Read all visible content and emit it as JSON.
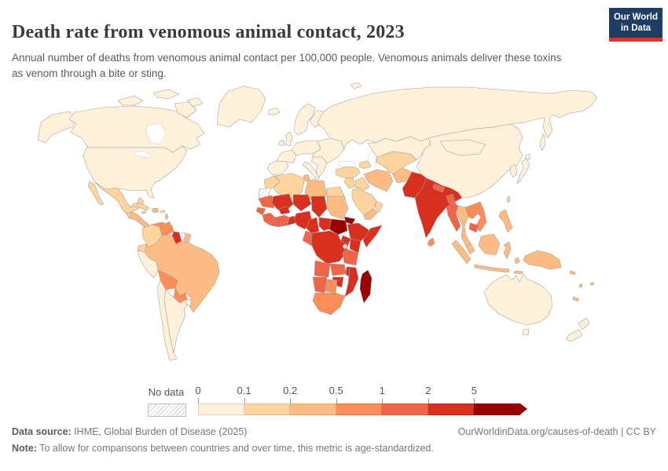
{
  "header": {
    "title": "Death rate from venomous animal contact, 2023",
    "subtitle": "Annual number of deaths from venomous animal contact per 100,000 people. Venomous animals deliver these toxins as venom through a bite or sting.",
    "logo": {
      "line1": "Our World",
      "line2": "in Data"
    }
  },
  "legend": {
    "no_data_label": "No data",
    "tick_labels": [
      "0",
      "0.1",
      "0.2",
      "0.5",
      "1",
      "2",
      "5"
    ],
    "colors": [
      "#fef0d9",
      "#fdd49e",
      "#fdbb84",
      "#fc8d59",
      "#ef6548",
      "#d7301f",
      "#990000"
    ]
  },
  "footer": {
    "source_label": "Data source:",
    "source_text": " IHME, Global Burden of Disease (2025)",
    "rights": "OurWorldinData.org/causes-of-death | CC BY",
    "note_label": "Note:",
    "note_text": " To allow for comparisons between countries and over time, this metric is age-standardized."
  },
  "chart_data": {
    "type": "heatmap",
    "map_type": "world-choropleth",
    "title": "Death rate from venomous animal contact, 2023",
    "unit": "deaths per 100,000 people (age-standardized)",
    "legend_thresholds": [
      0,
      0.1,
      0.2,
      0.5,
      1,
      2,
      5
    ],
    "palette": [
      "#fef0d9",
      "#fdd49e",
      "#fdbb84",
      "#fc8d59",
      "#ef6548",
      "#d7301f",
      "#990000"
    ],
    "bins": [
      {
        "index": 0,
        "label": "0-0.1"
      },
      {
        "index": 1,
        "label": "0.1-0.2"
      },
      {
        "index": 2,
        "label": "0.2-0.5"
      },
      {
        "index": 3,
        "label": "0.5-1"
      },
      {
        "index": 4,
        "label": "1-2"
      },
      {
        "index": 5,
        "label": "2-5"
      },
      {
        "index": 6,
        "label": "5+"
      }
    ],
    "no_data_key": "nd",
    "regions": {
      "canada": 0,
      "alaska": 0,
      "usa": 0,
      "greenland": 0,
      "arctic-island-1": 0,
      "arctic-island-2": 0,
      "arctic-island-3": 0,
      "baffin-island": 0,
      "svalbard": 0,
      "mexico": 1,
      "baja-california": 1,
      "guatemala": 1,
      "central-america": 2,
      "cuba": 1,
      "jamaica": 1,
      "hispaniola": 2,
      "puerto-rico": 1,
      "lesser-antilles": 2,
      "trinidad": 3,
      "colombia": 1,
      "venezuela": 3,
      "guyana": 5,
      "suriname": "nd",
      "french-guiana": 2,
      "ecuador": 1,
      "peru": 0,
      "brazil": 2,
      "bolivia": 3,
      "paraguay": 3,
      "chile": 0,
      "argentina": 0,
      "uruguay": 0,
      "iceland": 0,
      "uk": 0,
      "ireland": 0,
      "scandinavia": 0,
      "finland": 0,
      "iberia": 0,
      "france": 0,
      "central-europe": 0,
      "italy": 0,
      "sicily": 0,
      "balkans": 0,
      "eastern-europe": 0,
      "russia": 0,
      "sakhalin": 0,
      "turkey": 1,
      "caucasus": 1,
      "levant": 1,
      "iraq": 1,
      "saudi-arabia": 1,
      "yemen": 2,
      "oman": 1,
      "iran": 2,
      "afghanistan": 2,
      "central-asia": 1,
      "kazakhstan": 0,
      "pakistan": 5,
      "india": 5,
      "nepal": 4,
      "bangladesh": 4,
      "sri-lanka": 3,
      "china": 0,
      "mongolia": 0,
      "korea": 0,
      "japan": 0,
      "hokkaido": 0,
      "taiwan": 1,
      "myanmar": 4,
      "thailand": 2,
      "laos": 3,
      "vietnam": 3,
      "cambodia": 4,
      "malaysia": 2,
      "sumatra": 2,
      "java": 2,
      "borneo": 2,
      "sulawesi": 2,
      "lesser-sunda": 2,
      "moluccas": 2,
      "philippines": 2,
      "new-guinea": 2,
      "morocco": 1,
      "western-sahara": "nd",
      "algeria": 1,
      "tunisia": 2,
      "libya": 2,
      "egypt": 1,
      "mauritania": 4,
      "senegal": 4,
      "mali": 5,
      "burkina-faso": 5,
      "niger": 5,
      "chad": 5,
      "sudan": 2,
      "guinea-region": 4,
      "ivory-coast-ghana": 4,
      "togo-benin": 5,
      "nigeria": 5,
      "cameroon": 5,
      "central-african-republic": 5,
      "south-sudan": 6,
      "eritrea": 6,
      "djibouti": 5,
      "ethiopia": 5,
      "somalia": 5,
      "kenya": 5,
      "uganda": 5,
      "rwanda-burundi": 5,
      "drc": 5,
      "congo-gabon": 4,
      "tanzania": 4,
      "angola": 4,
      "zambia": 4,
      "malawi": 5,
      "mozambique": 5,
      "zimbabwe": 5,
      "namibia": 4,
      "botswana": 3,
      "south-africa": 3,
      "lesotho": 3,
      "madagascar": 6,
      "australia": 0,
      "tasmania": 0,
      "new-zealand-north": 0,
      "new-zealand-south": 0,
      "fiji": 2,
      "vanuatu": 2,
      "solomon-islands": 2,
      "new-caledonia": 2
    }
  }
}
